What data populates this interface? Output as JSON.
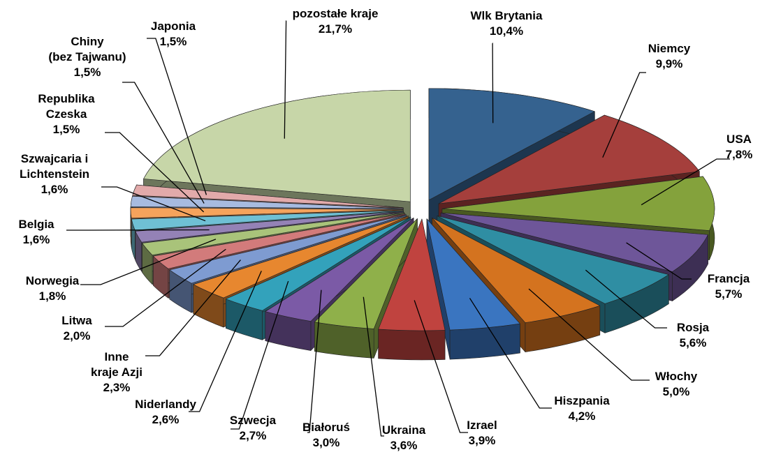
{
  "chart_data": {
    "type": "pie3d",
    "categories": [
      "Wlk Brytania",
      "Niemcy",
      "USA",
      "Francja",
      "Rosja",
      "Włochy",
      "Hiszpania",
      "Izrael",
      "Ukraina",
      "Białoruś",
      "Szwecja",
      "Niderlandy",
      "Inne\nkraje Azji",
      "Litwa",
      "Norwegia",
      "Belgia",
      "Szwajcaria i\nLichtenstein",
      "Republika\nCzeska",
      "Chiny\n(bez Tajwanu)",
      "Japonia",
      "pozostałe kraje"
    ],
    "values": [
      10.4,
      9.9,
      7.8,
      5.7,
      5.6,
      5.0,
      4.2,
      3.9,
      3.6,
      3.0,
      2.7,
      2.6,
      2.3,
      2.0,
      1.8,
      1.6,
      1.6,
      1.5,
      1.5,
      1.5,
      21.7
    ],
    "value_labels": [
      "10,4%",
      "9,9%",
      "7,8%",
      "5,7%",
      "5,6%",
      "5,0%",
      "4,2%",
      "3,9%",
      "3,6%",
      "3,0%",
      "2,7%",
      "2,6%",
      "2,3%",
      "2,0%",
      "1,8%",
      "1,6%",
      "1,6%",
      "1,5%",
      "1,5%",
      "1,5%",
      "21,7%"
    ],
    "colors": [
      "#35628f",
      "#a53f3c",
      "#84a23c",
      "#6e5699",
      "#2f8ea3",
      "#d4731f",
      "#3a75c0",
      "#c0433f",
      "#8fb04a",
      "#7b5aa6",
      "#33a2bb",
      "#e7872f",
      "#7e9bd1",
      "#d27b7b",
      "#a9c37a",
      "#9482b6",
      "#6fc0d4",
      "#f5a35c",
      "#a7bbe0",
      "#e2aaaa",
      "#c7d6a8"
    ]
  }
}
